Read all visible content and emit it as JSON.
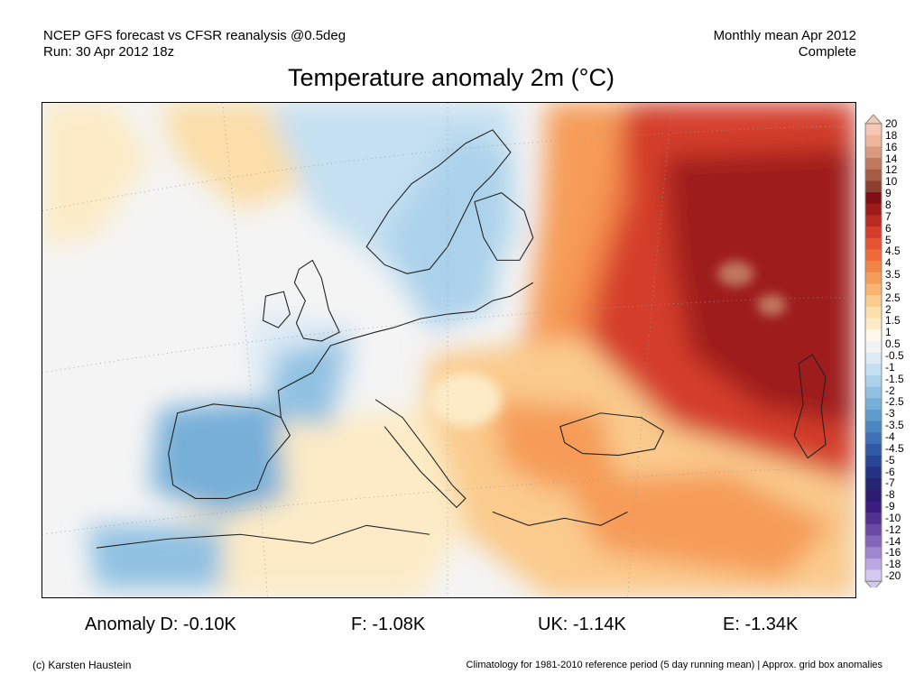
{
  "header": {
    "model_line": "NCEP GFS forecast vs CFSR reanalysis @0.5deg",
    "run_line": "Run: 30 Apr 2012 18z",
    "period_line": "Monthly mean Apr 2012",
    "status_line": "Complete"
  },
  "title": "Temperature anomaly 2m (°C)",
  "colorbar": {
    "labels": [
      "20",
      "18",
      "16",
      "14",
      "12",
      "10",
      "9",
      "8",
      "7",
      "6",
      "5",
      "4.5",
      "4",
      "3.5",
      "3",
      "2.5",
      "2",
      "1.5",
      "1",
      "0.5",
      "-0.5",
      "-1",
      "-1.5",
      "-2",
      "-2.5",
      "-3",
      "-3.5",
      "-4",
      "-4.5",
      "-5",
      "-6",
      "-7",
      "-8",
      "-9",
      "-10",
      "-12",
      "-14",
      "-16",
      "-18",
      "-20"
    ],
    "colors": [
      "#f5c9b4",
      "#eeb59a",
      "#d99a7f",
      "#c0785e",
      "#a55d45",
      "#8c3f30",
      "#7e0d14",
      "#9e1b1b",
      "#bb2a22",
      "#d43d2a",
      "#e5532f",
      "#ef6a38",
      "#f38346",
      "#f69c59",
      "#f8b471",
      "#facb8d",
      "#fbdea9",
      "#fcebc6",
      "#fef7ea",
      "#f2f2f2",
      "#dceaf5",
      "#c5e0f1",
      "#acd2eb",
      "#90c1e2",
      "#76afd8",
      "#5e9ccd",
      "#4c86c2",
      "#3d70b5",
      "#3059a6",
      "#284494",
      "#233283",
      "#262474",
      "#2c1b70",
      "#3b1c80",
      "#51308f",
      "#6a49a6",
      "#8466bb",
      "#9f86cf",
      "#bba7e2",
      "#d6c9f1"
    ]
  },
  "stats": {
    "germany": "Anomaly D: -0.10K",
    "france": "F: -1.08K",
    "uk": "UK: -1.14K",
    "spain": "E: -1.34K"
  },
  "footer": {
    "copyright": "(c) Karsten Haustein",
    "note": "Climatology for 1981-2010 reference period (5 day running mean) | Approx. grid box anomalies"
  }
}
